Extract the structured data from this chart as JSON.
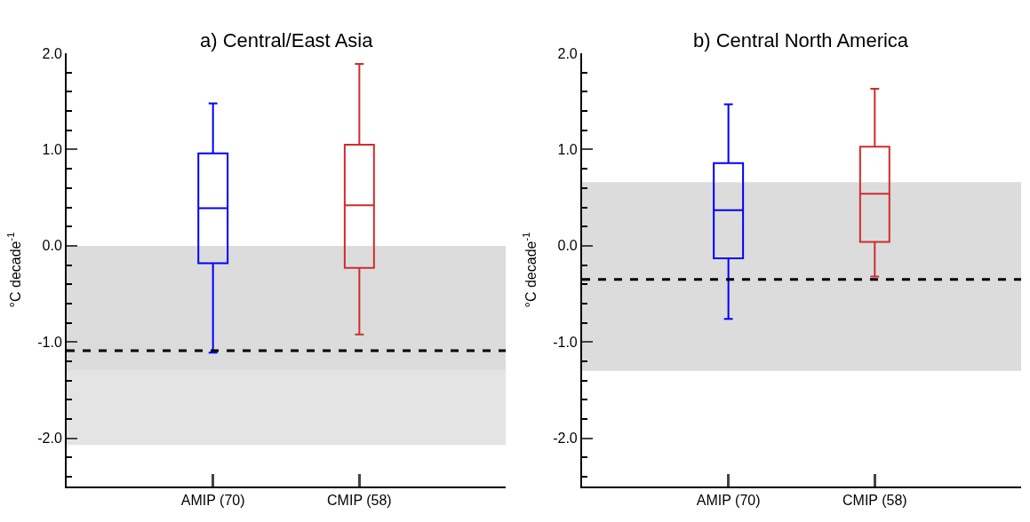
{
  "chart_data": [
    {
      "type": "box",
      "title": "a) Central/East Asia",
      "ylabel": "°C decade$^{-1}$",
      "categories": [
        "AMIP (70)",
        "CMIP (58)"
      ],
      "colors": [
        "#0000ff",
        "#d02c2c"
      ],
      "boxes": [
        {
          "low": -1.11,
          "q1": -0.18,
          "median": 0.39,
          "q3": 0.96,
          "high": 1.48
        },
        {
          "low": -0.92,
          "q1": -0.23,
          "median": 0.42,
          "q3": 1.05,
          "high": 1.89
        }
      ],
      "ylim": [
        -2.5,
        2.0
      ],
      "yticks": [
        {
          "value": -2,
          "label": "-2.0"
        },
        {
          "value": -1,
          "label": "-1.0"
        },
        {
          "value": 0,
          "label": "0.0"
        },
        {
          "value": 1,
          "label": "1.0"
        },
        {
          "value": 2,
          "label": "2.0"
        }
      ],
      "ref_lines": [
        {
          "axis": "y",
          "value": -1.09,
          "color": "#000000",
          "line_style": "dashed"
        }
      ],
      "bands": [
        {
          "axis": "y",
          "from": -1.3,
          "to": 0.0,
          "color": "#dcdcdc"
        },
        {
          "axis": "y",
          "from": -2.07,
          "to": -1.3,
          "color": "#e4e4e4"
        }
      ],
      "grid": false
    },
    {
      "type": "box",
      "title": "b) Central North America",
      "ylabel": "°C decade$^{-1}$",
      "categories": [
        "AMIP (70)",
        "CMIP (58)"
      ],
      "colors": [
        "#0000ff",
        "#d02c2c"
      ],
      "boxes": [
        {
          "low": -0.76,
          "q1": -0.13,
          "median": 0.37,
          "q3": 0.86,
          "high": 1.47
        },
        {
          "low": -0.32,
          "q1": 0.04,
          "median": 0.54,
          "q3": 1.03,
          "high": 1.63
        }
      ],
      "ylim": [
        -2.5,
        2.0
      ],
      "yticks": [
        {
          "value": -2,
          "label": "-2.0"
        },
        {
          "value": -1,
          "label": "-1.0"
        },
        {
          "value": 0,
          "label": "0.0"
        },
        {
          "value": 1,
          "label": "1.0"
        },
        {
          "value": 2,
          "label": "2.0"
        }
      ],
      "ref_lines": [
        {
          "axis": "y",
          "value": -0.35,
          "color": "#000000",
          "line_style": "dashed"
        }
      ],
      "bands": [
        {
          "axis": "y",
          "from": -1.3,
          "to": 0.66,
          "color": "#dcdcdc"
        }
      ],
      "grid": false
    }
  ]
}
